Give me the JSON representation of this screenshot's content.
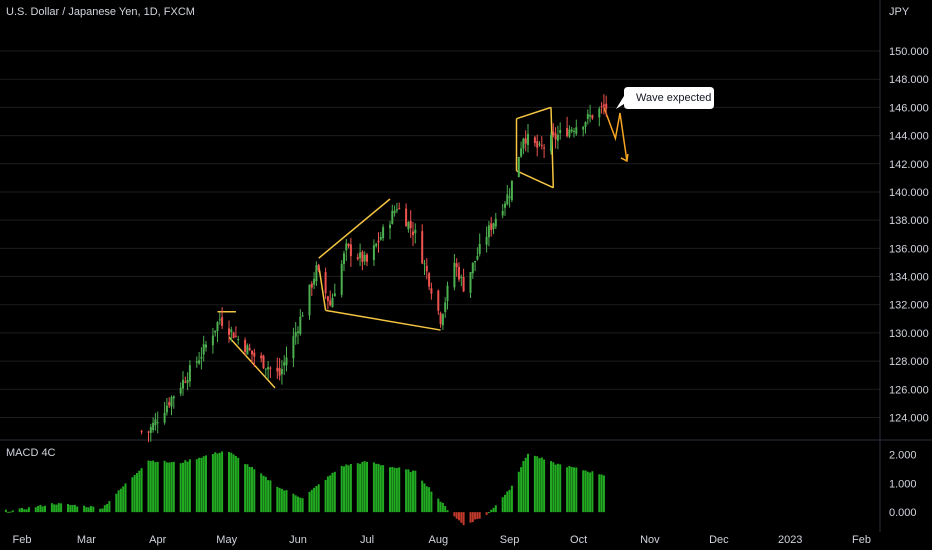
{
  "header": {
    "title": "U.S. Dollar / Japanese Yen, 1D, FXCM"
  },
  "annotation": {
    "text": "Wave expected"
  },
  "colors": {
    "up": "#26a69a",
    "up_candle": "#4caf50",
    "down_candle": "#ef5350",
    "macd_pos": "#22ab22",
    "macd_neg": "#c0392b",
    "pattern": "#f5c542",
    "forecast": "#f5a623",
    "grid": "#1c1c1c",
    "axis_text": "#d1d4dc"
  },
  "chart_data": [
    {
      "type": "candlestick",
      "title": "U.S. Dollar / Japanese Yen, 1D, FXCM",
      "unit": "JPY",
      "y_ticks": [
        "124.000",
        "126.000",
        "128.000",
        "130.000",
        "132.000",
        "134.000",
        "136.000",
        "138.000",
        "140.000",
        "142.000",
        "144.000",
        "146.000",
        "148.000",
        "150.000"
      ],
      "ylim": [
        122.4,
        152.2
      ],
      "x_ticks": [
        "Feb",
        "Mar",
        "Apr",
        "May",
        "Jun",
        "Jul",
        "Aug",
        "Sep",
        "Oct",
        "Nov",
        "Dec",
        "2023",
        "Feb"
      ],
      "close_anchors": [
        {
          "date": "Mar 28",
          "value": 123.0
        },
        {
          "date": "Apr 20",
          "value": 128.5
        },
        {
          "date": "Apr 28",
          "value": 131.0
        },
        {
          "date": "May 12",
          "value": 128.5
        },
        {
          "date": "May 24",
          "value": 127.0
        },
        {
          "date": "Jun 1",
          "value": 130.5
        },
        {
          "date": "Jun 9",
          "value": 134.5
        },
        {
          "date": "Jun 15",
          "value": 132.0
        },
        {
          "date": "Jun 22",
          "value": 136.0
        },
        {
          "date": "Jul 1",
          "value": 135.0
        },
        {
          "date": "Jul 14",
          "value": 139.0
        },
        {
          "date": "Jul 22",
          "value": 137.0
        },
        {
          "date": "Aug 2",
          "value": 131.0
        },
        {
          "date": "Aug 8",
          "value": 135.0
        },
        {
          "date": "Aug 12",
          "value": 133.3
        },
        {
          "date": "Aug 22",
          "value": 137.0
        },
        {
          "date": "Sep 1",
          "value": 140.0
        },
        {
          "date": "Sep 7",
          "value": 144.0
        },
        {
          "date": "Sep 14",
          "value": 143.0
        },
        {
          "date": "Sep 22",
          "value": 144.0
        },
        {
          "date": "Oct 3",
          "value": 145.0
        },
        {
          "date": "Oct 12",
          "value": 146.0
        }
      ]
    },
    {
      "type": "bar",
      "title": "MACD 4C",
      "y_ticks": [
        "0.000",
        "1.000",
        "2.000"
      ],
      "ylim": [
        -0.55,
        2.4
      ],
      "histogram_anchors": [
        {
          "date": "Jan 28",
          "value": 0.05
        },
        {
          "date": "Feb 15",
          "value": 0.3
        },
        {
          "date": "Mar 8",
          "value": 0.15
        },
        {
          "date": "Mar 28",
          "value": 1.8
        },
        {
          "date": "Apr 10",
          "value": 1.7
        },
        {
          "date": "May 1",
          "value": 2.15
        },
        {
          "date": "May 25",
          "value": 0.8
        },
        {
          "date": "Jun 3",
          "value": 0.5
        },
        {
          "date": "Jun 20",
          "value": 1.6
        },
        {
          "date": "Jul 1",
          "value": 1.75
        },
        {
          "date": "Jul 22",
          "value": 1.4
        },
        {
          "date": "Aug 5",
          "value": 0.1
        },
        {
          "date": "Aug 12",
          "value": -0.45
        },
        {
          "date": "Aug 22",
          "value": -0.1
        },
        {
          "date": "Sep 1",
          "value": 0.8
        },
        {
          "date": "Sep 9",
          "value": 2.05
        },
        {
          "date": "Sep 20",
          "value": 1.7
        },
        {
          "date": "Oct 12",
          "value": 1.3
        }
      ]
    }
  ]
}
